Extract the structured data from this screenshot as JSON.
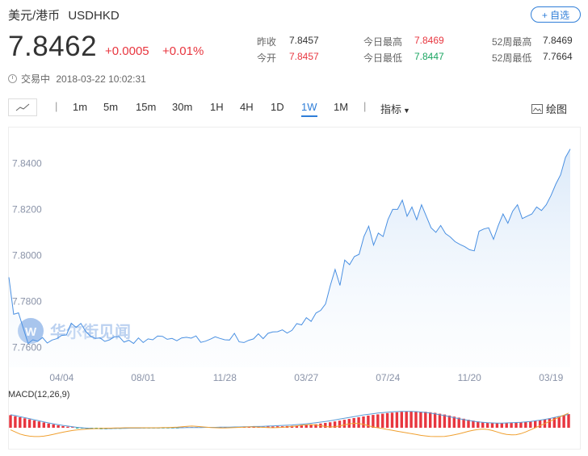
{
  "header": {
    "name": "美元/港币",
    "code": "USDHKD",
    "add_watchlist": "+ 自选",
    "price": "7.8462",
    "change": "+0.0005",
    "change_pct": "+0.01%",
    "status": "交易中",
    "timestamp": "2018-03-22 10:02:31"
  },
  "stats": [
    {
      "label": "昨收",
      "value": "7.8457",
      "tone": "neutral"
    },
    {
      "label": "今开",
      "value": "7.8457",
      "tone": "red"
    },
    {
      "label": "今日最高",
      "value": "7.8469",
      "tone": "red"
    },
    {
      "label": "今日最低",
      "value": "7.8447",
      "tone": "green"
    },
    {
      "label": "52周最高",
      "value": "7.8469",
      "tone": "neutral"
    },
    {
      "label": "52周最低",
      "value": "7.7664",
      "tone": "neutral"
    }
  ],
  "toolbar": {
    "periods": [
      "1m",
      "5m",
      "15m",
      "30m",
      "1H",
      "4H",
      "1D",
      "1W",
      "1M"
    ],
    "active_period": "1W",
    "indicator": "指标",
    "draw": "绘图"
  },
  "watermark": "华尔街见闻",
  "colors": {
    "line": "#4a90e2",
    "up": "#e8363f",
    "down": "#1aa561",
    "macd_fast": "#5b9bd5",
    "macd_slow": "#f0a030"
  },
  "chart_data": {
    "type": "area",
    "y_ticks": [
      "7.8400",
      "7.8200",
      "7.8000",
      "7.7800",
      "7.7600"
    ],
    "ylim": [
      7.7515,
      7.8555
    ],
    "x_ticks": [
      "04/04",
      "08/01",
      "11/28",
      "03/27",
      "07/24",
      "11/20",
      "03/19"
    ],
    "x_tick_index": [
      11,
      28,
      45,
      62,
      79,
      96,
      113
    ],
    "values": [
      7.7905,
      7.7745,
      7.7751,
      7.7684,
      7.7618,
      7.7634,
      7.7627,
      7.7644,
      7.762,
      7.7633,
      7.7639,
      7.7653,
      7.7655,
      7.7706,
      7.7688,
      7.7705,
      7.7671,
      7.7649,
      7.764,
      7.7642,
      7.7627,
      7.7634,
      7.7647,
      7.7647,
      7.7624,
      7.7632,
      7.7618,
      7.7642,
      7.7622,
      7.7638,
      7.7634,
      7.765,
      7.7649,
      7.7636,
      7.764,
      7.763,
      7.7642,
      7.7645,
      7.7641,
      7.7651,
      7.7623,
      7.7628,
      7.7637,
      7.7647,
      7.764,
      7.7634,
      7.7633,
      7.7662,
      7.7625,
      7.7622,
      7.7632,
      7.7638,
      7.766,
      7.7639,
      7.7662,
      7.7668,
      7.7669,
      7.7677,
      7.7663,
      7.7675,
      7.7704,
      7.7699,
      7.773,
      7.7714,
      7.775,
      7.7762,
      7.779,
      7.787,
      7.7939,
      7.787,
      7.798,
      7.796,
      7.7995,
      7.8005,
      7.8082,
      7.8127,
      7.8045,
      7.8097,
      7.8082,
      7.8155,
      7.82,
      7.82,
      7.824,
      7.817,
      7.821,
      7.8155,
      7.822,
      7.817,
      7.812,
      7.81,
      7.813,
      7.8095,
      7.808,
      7.806,
      7.8048,
      7.8038,
      7.8025,
      7.802,
      7.8105,
      7.8115,
      7.812,
      7.807,
      7.813,
      7.818,
      7.814,
      7.8192,
      7.822,
      7.816,
      7.817,
      7.818,
      7.821,
      7.8195,
      7.822,
      7.826,
      7.831,
      7.835,
      7.8425,
      7.8462
    ],
    "macd": {
      "label": "MACD(12,26,9)",
      "hist": [
        6,
        5.5,
        5,
        4.5,
        4,
        3.5,
        3,
        2.5,
        2,
        1.6,
        1.2,
        0.8,
        0.5,
        0.2,
        -0.1,
        -0.3,
        -0.5,
        -0.6,
        -0.6,
        -0.7,
        -0.7,
        -0.6,
        -0.5,
        -0.5,
        -0.4,
        -0.4,
        -0.3,
        -0.3,
        -0.2,
        -0.2,
        -0.2,
        -0.2,
        -0.1,
        -0.1,
        -0.1,
        -0.1,
        0,
        0,
        0,
        0,
        0.1,
        0.1,
        0.1,
        0.1,
        0.2,
        0.2,
        0.2,
        0.2,
        0.3,
        0.3,
        0.4,
        0.4,
        0.5,
        0.5,
        0.6,
        0.6,
        0.7,
        0.7,
        0.8,
        0.9,
        1.0,
        1.1,
        1.3,
        1.5,
        1.7,
        2.0,
        2.3,
        2.6,
        3.0,
        3.4,
        3.8,
        4.2,
        4.6,
        5.0,
        5.4,
        5.8,
        6.1,
        6.4,
        6.7,
        7.0,
        7.2,
        7.4,
        7.6,
        7.7,
        7.8,
        7.8,
        7.7,
        7.6,
        7.4,
        7.1,
        6.7,
        6.3,
        5.8,
        5.3,
        4.8,
        4.3,
        3.8,
        3.4,
        3.0,
        2.7,
        2.5,
        2.4,
        2.3,
        2.3,
        2.3,
        2.4,
        2.5,
        2.6,
        2.8,
        3.0,
        3.3,
        3.6,
        4.0,
        4.5,
        5.0,
        5.5,
        6.0,
        6.5
      ],
      "fast": [
        6.2,
        5.8,
        5.3,
        4.8,
        4.3,
        3.8,
        3.3,
        2.8,
        2.3,
        1.9,
        1.5,
        1.1,
        0.8,
        0.5,
        0.2,
        0.0,
        -0.2,
        -0.3,
        -0.4,
        -0.4,
        -0.4,
        -0.4,
        -0.3,
        -0.3,
        -0.3,
        -0.2,
        -0.2,
        -0.2,
        -0.1,
        -0.1,
        -0.1,
        -0.1,
        0,
        0,
        0,
        0,
        0,
        0.1,
        0.1,
        0.1,
        0.1,
        0.2,
        0.2,
        0.2,
        0.3,
        0.3,
        0.3,
        0.4,
        0.4,
        0.5,
        0.5,
        0.6,
        0.6,
        0.7,
        0.8,
        0.9,
        1.0,
        1.1,
        1.2,
        1.3,
        1.5,
        1.7,
        1.9,
        2.1,
        2.4,
        2.7,
        3.0,
        3.3,
        3.7,
        4.1,
        4.5,
        4.9,
        5.3,
        5.7,
        6.1,
        6.4,
        6.7,
        7.0,
        7.2,
        7.4,
        7.6,
        7.7,
        7.8,
        7.8,
        7.8,
        7.7,
        7.5,
        7.3,
        7.0,
        6.6,
        6.2,
        5.8,
        5.3,
        4.8,
        4.3,
        3.9,
        3.5,
        3.1,
        2.8,
        2.6,
        2.4,
        2.3,
        2.2,
        2.2,
        2.3,
        2.4,
        2.5,
        2.6,
        2.8,
        3.0,
        3.3,
        3.6,
        4.0,
        4.4,
        4.9,
        5.4,
        5.9,
        6.4
      ],
      "slow": [
        -1.0,
        -2.0,
        -3.0,
        -3.6,
        -4.0,
        -4.2,
        -4.2,
        -4.0,
        -3.6,
        -3.1,
        -2.6,
        -2.1,
        -1.7,
        -1.3,
        -1.0,
        -0.8,
        -0.6,
        -0.5,
        -0.4,
        -0.3,
        -0.2,
        -0.2,
        -0.1,
        -0.1,
        0,
        0,
        0,
        0,
        0,
        0,
        0,
        0,
        0.1,
        0.1,
        0.2,
        0.3,
        0.5,
        0.7,
        0.8,
        0.7,
        0.5,
        0.3,
        0.1,
        0,
        -0.1,
        -0.1,
        0,
        0.1,
        0.2,
        0.3,
        0.4,
        0.4,
        0.3,
        0.2,
        0.1,
        0,
        0.1,
        0.2,
        0.4,
        0.6,
        0.9,
        1.2,
        1.4,
        1.5,
        1.3,
        1.0,
        0.6,
        0.4,
        0.5,
        0.9,
        1.4,
        1.8,
        2.1,
        2.0,
        1.6,
        1.0,
        0.4,
        0.0,
        -0.4,
        -0.8,
        -1.2,
        -1.6,
        -2.0,
        -2.4,
        -2.8,
        -3.2,
        -3.6,
        -3.9,
        -4.1,
        -4.2,
        -4.2,
        -4.1,
        -3.8,
        -3.4,
        -2.9,
        -2.3,
        -1.7,
        -1.2,
        -0.8,
        -0.6,
        -0.8,
        -1.3,
        -2.0,
        -2.7,
        -3.2,
        -3.4,
        -3.3,
        -2.8,
        -2.0,
        -1.0,
        0.0,
        1.0,
        2.0,
        3.0,
        4.0,
        5.0,
        6.0,
        7.0
      ]
    }
  }
}
